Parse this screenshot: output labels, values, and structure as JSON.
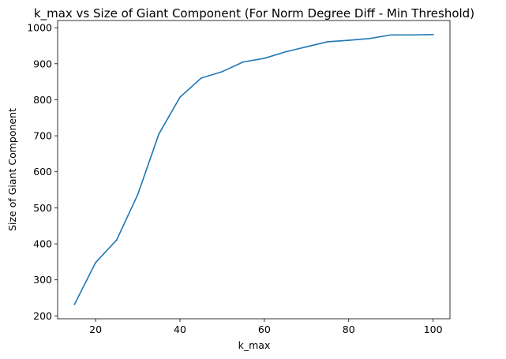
{
  "chart_data": {
    "type": "line",
    "title": "k_max vs Size of Giant Component (For Norm Degree Diff - Min Threshold)",
    "xlabel": "k_max",
    "ylabel": "Size of Giant Component",
    "xlim": [
      11,
      104
    ],
    "ylim": [
      192,
      1020
    ],
    "xticks": [
      20,
      40,
      60,
      80,
      100
    ],
    "yticks": [
      200,
      300,
      400,
      500,
      600,
      700,
      800,
      900,
      1000
    ],
    "grid": false,
    "line_color": "#1f77b4",
    "series": [
      {
        "x": [
          15,
          20,
          25,
          30,
          35,
          40,
          45,
          50,
          55,
          60,
          65,
          70,
          75,
          80,
          85,
          90,
          95,
          100
        ],
        "values": [
          232,
          348,
          411,
          537,
          705,
          807,
          860,
          878,
          905,
          915,
          933,
          947,
          961,
          965,
          970,
          980,
          980,
          981
        ]
      }
    ]
  }
}
